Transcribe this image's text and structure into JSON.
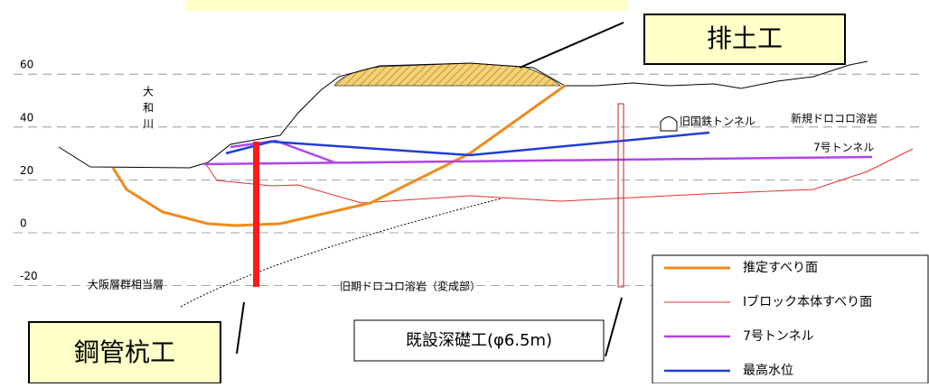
{
  "axis": {
    "ticks": [
      60,
      40,
      20,
      0,
      -20
    ]
  },
  "callouts": {
    "excavation": "排土工",
    "steel_pile": "鋼管杭工",
    "deep_foundation": "既設深礎工(φ6.5m)"
  },
  "labels": {
    "river": "大和川",
    "old_tunnel": "旧国鉄トンネル",
    "new_lava": "新規ドロコロ溶岩",
    "tunnel7": "7号トンネル",
    "osaka_layer": "大阪層群相当層",
    "old_lava": "旧期ドロコロ溶岩（変成部）"
  },
  "legend": [
    "推定すべり面",
    "Iブロック本体すべり面",
    "7号トンネル",
    "最高水位"
  ]
}
